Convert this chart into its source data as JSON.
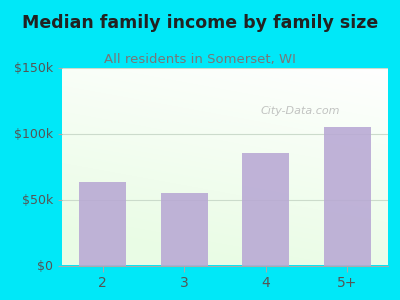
{
  "title": "Median family income by family size",
  "subtitle": "All residents in Somerset, WI",
  "categories": [
    "2",
    "3",
    "4",
    "5+"
  ],
  "values": [
    63000,
    55000,
    85000,
    105000
  ],
  "ylim": [
    0,
    150000
  ],
  "ytick_labels": [
    "$0",
    "$50k",
    "$100k",
    "$150k"
  ],
  "ytick_values": [
    0,
    50000,
    100000,
    150000
  ],
  "bar_color": "#b8a8d4",
  "bar_width": 0.58,
  "title_fontsize": 12.5,
  "subtitle_fontsize": 9.5,
  "tick_fontsize": 9,
  "background_outer": "#00e8f8",
  "watermark": "City-Data.com",
  "title_color": "#222222",
  "subtitle_color": "#777777",
  "tick_color": "#555555",
  "grid_color": "#e0e8e0"
}
